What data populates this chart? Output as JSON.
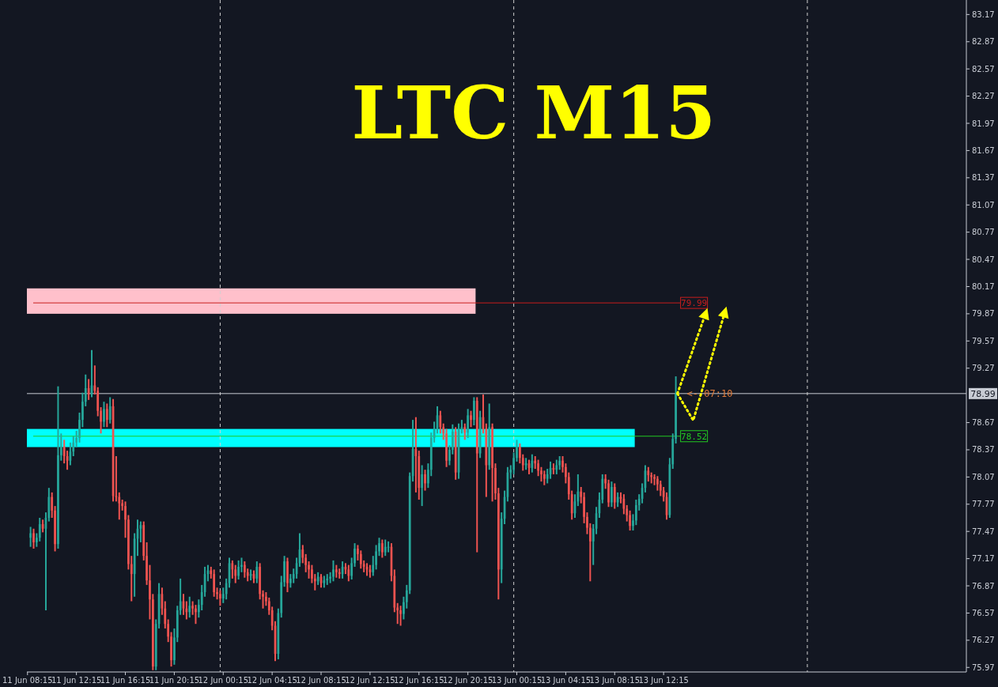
{
  "chart_data": {
    "type": "candlestick",
    "title": "LTC M15",
    "colors": [
      "#26a69a",
      "#ef5350",
      "#26a69a",
      "#26a69a",
      "#ef5350",
      "#26a69a",
      "#26a69a",
      "#ef5350",
      "#ef5350",
      "#26a69a",
      "#26a69a",
      "#ef5350",
      "#ef5350",
      "#26a69a",
      "#26a69a",
      "#26a69a",
      "#26a69a",
      "#26a69a",
      "#26a69a",
      "#ef5350",
      "#26a69a",
      "#ef5350",
      "#ef5350",
      "#ef5350",
      "#26a69a",
      "#ef5350",
      "#26a69a",
      "#ef5350",
      "#ef5350",
      "#ef5350",
      "#ef5350",
      "#ef5350",
      "#ef5350",
      "#ef5350",
      "#26a69a",
      "#26a69a",
      "#26a69a",
      "#ef5350",
      "#ef5350",
      "#ef5350",
      "#ef5350",
      "#26a69a",
      "#26a69a",
      "#ef5350",
      "#ef5350",
      "#ef5350",
      "#ef5350",
      "#26a69a",
      "#26a69a",
      "#26a69a",
      "#ef5350",
      "#ef5350",
      "#26a69a",
      "#ef5350",
      "#ef5350",
      "#26a69a",
      "#26a69a",
      "#26a69a",
      "#26a69a",
      "#ef5350",
      "#ef5350",
      "#ef5350",
      "#ef5350",
      "#26a69a",
      "#26a69a",
      "#26a69a",
      "#ef5350",
      "#ef5350",
      "#26a69a",
      "#26a69a",
      "#ef5350",
      "#ef5350",
      "#26a69a",
      "#ef5350",
      "#26a69a",
      "#ef5350",
      "#ef5350",
      "#ef5350",
      "#ef5350",
      "#ef5350",
      "#ef5350",
      "#26a69a",
      "#26a69a",
      "#26a69a",
      "#ef5350",
      "#26a69a",
      "#26a69a",
      "#26a69a",
      "#26a69a",
      "#ef5350",
      "#ef5350",
      "#ef5350",
      "#ef5350",
      "#ef5350",
      "#26a69a",
      "#ef5350",
      "#26a69a",
      "#26a69a",
      "#26a69a",
      "#26a69a",
      "#ef5350",
      "#ef5350",
      "#26a69a",
      "#ef5350",
      "#ef5350",
      "#26a69a",
      "#26a69a",
      "#ef5350",
      "#ef5350",
      "#ef5350",
      "#ef5350",
      "#ef5350",
      "#26a69a",
      "#26a69a",
      "#26a69a",
      "#ef5350",
      "#26a69a",
      "#26a69a",
      "#ef5350",
      "#ef5350",
      "#ef5350",
      "#ef5350",
      "#26a69a",
      "#26a69a",
      "#26a69a",
      "#26a69a",
      "#ef5350",
      "#ef5350",
      "#26a69a",
      "#ef5350",
      "#26a69a",
      "#26a69a",
      "#26a69a",
      "#26a69a",
      "#ef5350",
      "#ef5350",
      "#ef5350",
      "#26a69a",
      "#26a69a",
      "#ef5350",
      "#26a69a",
      "#26a69a",
      "#ef5350",
      "#26a69a",
      "#ef5350",
      "#26a69a",
      "#ef5350",
      "#26a69a",
      "#ef5350",
      "#ef5350",
      "#26a69a",
      "#ef5350",
      "#ef5350",
      "#ef5350",
      "#26a69a",
      "#26a69a",
      "#26a69a",
      "#26a69a",
      "#26a69a",
      "#26a69a",
      "#ef5350",
      "#ef5350",
      "#26a69a",
      "#ef5350",
      "#26a69a",
      "#ef5350",
      "#ef5350",
      "#ef5350",
      "#ef5350",
      "#26a69a",
      "#26a69a",
      "#ef5350",
      "#26a69a",
      "#26a69a",
      "#ef5350",
      "#ef5350",
      "#ef5350",
      "#ef5350",
      "#26a69a",
      "#26a69a",
      "#ef5350",
      "#ef5350",
      "#ef5350",
      "#ef5350",
      "#26a69a",
      "#26a69a",
      "#26a69a",
      "#26a69a",
      "#ef5350",
      "#ef5350",
      "#26a69a",
      "#ef5350",
      "#26a69a",
      "#ef5350",
      "#ef5350",
      "#ef5350",
      "#ef5350",
      "#26a69a",
      "#26a69a",
      "#26a69a",
      "#26a69a",
      "#26a69a",
      "#ef5350",
      "#ef5350",
      "#ef5350",
      "#ef5350",
      "#ef5350",
      "#ef5350",
      "#ef5350",
      "#26a69a",
      "#26a69a",
      "#26a69a"
    ],
    "x": [
      "--06-11T08:30",
      "--06-11T08:45",
      "--06-11T09:00",
      "--06-11T09:15",
      "--06-11T09:30",
      "--06-11T09:45",
      "--06-11T10:00",
      "--06-11T10:15",
      "--06-11T10:30",
      "--06-11T10:45",
      "--06-11T11:00",
      "--06-11T11:15",
      "--06-11T11:30",
      "--06-11T11:45",
      "--06-11T12:00",
      "--06-11T12:15",
      "--06-11T12:30",
      "--06-11T12:45",
      "--06-11T13:00",
      "--06-11T13:15",
      "--06-11T13:30",
      "--06-11T13:45",
      "--06-11T14:00",
      "--06-11T14:15",
      "--06-11T14:30",
      "--06-11T14:45",
      "--06-11T15:00",
      "--06-11T15:15",
      "--06-11T15:30",
      "--06-11T15:45",
      "--06-11T16:00",
      "--06-11T16:15",
      "--06-11T16:30",
      "--06-11T16:45",
      "--06-11T17:00",
      "--06-11T17:15",
      "--06-11T17:30",
      "--06-11T17:45",
      "--06-11T18:00",
      "--06-11T18:15",
      "--06-11T18:30",
      "--06-11T18:45",
      "--06-11T19:00",
      "--06-11T19:15",
      "--06-11T19:30",
      "--06-11T19:45",
      "--06-11T20:00",
      "--06-11T20:15",
      "--06-11T20:30",
      "--06-11T20:45",
      "--06-11T21:00",
      "--06-11T21:15",
      "--06-11T21:30",
      "--06-11T21:45",
      "--06-11T22:00",
      "--06-11T22:15",
      "--06-11T22:30",
      "--06-11T22:45",
      "--06-11T23:00",
      "--06-11T23:15",
      "--06-11T23:30",
      "--06-11T23:45",
      "--06-12T00:00",
      "--06-12T00:15",
      "--06-12T00:30",
      "--06-12T00:45",
      "--06-12T01:00",
      "--06-12T01:15",
      "--06-12T01:30",
      "--06-12T01:45",
      "--06-12T02:00",
      "--06-12T02:15",
      "--06-12T02:30",
      "--06-12T02:45",
      "--06-12T03:00",
      "--06-12T03:15",
      "--06-12T03:30",
      "--06-12T03:45",
      "--06-12T04:00",
      "--06-12T04:15",
      "--06-12T04:30",
      "--06-12T04:45",
      "--06-12T05:00",
      "--06-12T05:15",
      "--06-12T05:30",
      "--06-12T05:45",
      "--06-12T06:00",
      "--06-12T06:15",
      "--06-12T06:30",
      "--06-12T06:45",
      "--06-12T07:00",
      "--06-12T07:15",
      "--06-12T07:30",
      "--06-12T07:45",
      "--06-12T08:00",
      "--06-12T08:15",
      "--06-12T08:30",
      "--06-12T08:45",
      "--06-12T09:00",
      "--06-12T09:15",
      "--06-12T09:30",
      "--06-12T09:45",
      "--06-12T10:00",
      "--06-12T10:15",
      "--06-12T10:30",
      "--06-12T10:45",
      "--06-12T11:00",
      "--06-12T11:15",
      "--06-12T11:30",
      "--06-12T11:45",
      "--06-12T12:00",
      "--06-12T12:15",
      "--06-12T12:30",
      "--06-12T12:45",
      "--06-12T13:00",
      "--06-12T13:15",
      "--06-12T13:30",
      "--06-12T13:45",
      "--06-12T14:00",
      "--06-12T14:15",
      "--06-12T14:30",
      "--06-12T14:45",
      "--06-12T15:00",
      "--06-12T15:15",
      "--06-12T15:30",
      "--06-12T15:45",
      "--06-12T16:00",
      "--06-12T16:15",
      "--06-12T16:30",
      "--06-12T16:45",
      "--06-12T17:00",
      "--06-12T17:15",
      "--06-12T17:30",
      "--06-12T17:45",
      "--06-12T18:00",
      "--06-12T18:15",
      "--06-12T18:30",
      "--06-12T18:45",
      "--06-12T19:00",
      "--06-12T19:15",
      "--06-12T19:30",
      "--06-12T19:45",
      "--06-12T20:00",
      "--06-12T20:15",
      "--06-12T20:30",
      "--06-12T20:45",
      "--06-12T21:00",
      "--06-12T21:15",
      "--06-12T21:30",
      "--06-12T21:45",
      "--06-12T22:00",
      "--06-12T22:15",
      "--06-12T22:30",
      "--06-12T22:45",
      "--06-12T23:00",
      "--06-12T23:15",
      "--06-12T23:30",
      "--06-12T23:45",
      "--06-13T00:00",
      "--06-13T00:15",
      "--06-13T00:30",
      "--06-13T00:45",
      "--06-13T01:00",
      "--06-13T01:15",
      "--06-13T01:30",
      "--06-13T01:45",
      "--06-13T02:00",
      "--06-13T02:15",
      "--06-13T02:30",
      "--06-13T02:45",
      "--06-13T03:00",
      "--06-13T03:15",
      "--06-13T03:30",
      "--06-13T03:45",
      "--06-13T04:00",
      "--06-13T04:15",
      "--06-13T04:30",
      "--06-13T04:45",
      "--06-13T05:00",
      "--06-13T05:15",
      "--06-13T05:30",
      "--06-13T05:45",
      "--06-13T06:00",
      "--06-13T06:15",
      "--06-13T06:30",
      "--06-13T06:45",
      "--06-13T07:00",
      "--06-13T07:15",
      "--06-13T07:30",
      "--06-13T07:45",
      "--06-13T08:00",
      "--06-13T08:15",
      "--06-13T08:30",
      "--06-13T08:45",
      "--06-13T09:00",
      "--06-13T09:15",
      "--06-13T09:30",
      "--06-13T09:45",
      "--06-13T10:00",
      "--06-13T10:15",
      "--06-13T10:30",
      "--06-13T10:45",
      "--06-13T11:00",
      "--06-13T11:15",
      "--06-13T11:30",
      "--06-13T11:45",
      "--06-13T12:00",
      "--06-13T12:15",
      "--06-13T12:30",
      "--06-13T12:45",
      "--06-13T13:00",
      "--06-13T13:15"
    ],
    "ohlc": [
      [
        77.4,
        77.52,
        77.3,
        77.45
      ],
      [
        77.45,
        77.5,
        77.28,
        77.35
      ],
      [
        77.35,
        77.45,
        77.3,
        77.4
      ],
      [
        77.4,
        77.62,
        77.36,
        77.55
      ],
      [
        77.55,
        77.6,
        77.46,
        77.5
      ],
      [
        77.5,
        77.68,
        76.6,
        77.62
      ],
      [
        77.62,
        77.95,
        77.58,
        77.85
      ],
      [
        77.85,
        77.9,
        77.62,
        77.7
      ],
      [
        77.7,
        77.75,
        77.25,
        77.33
      ],
      [
        77.33,
        79.07,
        77.28,
        78.31
      ],
      [
        78.31,
        78.55,
        78.25,
        78.4
      ],
      [
        78.4,
        78.48,
        78.22,
        78.3
      ],
      [
        78.3,
        78.36,
        78.15,
        78.25
      ],
      [
        78.25,
        78.45,
        78.2,
        78.35
      ],
      [
        78.35,
        78.52,
        78.3,
        78.45
      ],
      [
        78.45,
        78.58,
        78.4,
        78.5
      ],
      [
        78.5,
        78.78,
        78.45,
        78.7
      ],
      [
        78.7,
        79.0,
        78.62,
        78.9
      ],
      [
        78.9,
        79.2,
        78.85,
        79.05
      ],
      [
        79.05,
        79.15,
        78.92,
        78.98
      ],
      [
        78.98,
        79.47,
        78.95,
        79.08
      ],
      [
        79.08,
        79.3,
        78.98,
        79.02
      ],
      [
        79.02,
        79.06,
        78.74,
        78.8
      ],
      [
        78.8,
        78.84,
        78.55,
        78.68
      ],
      [
        78.68,
        78.9,
        78.62,
        78.82
      ],
      [
        78.82,
        78.88,
        78.62,
        78.7
      ],
      [
        78.7,
        78.95,
        78.66,
        78.85
      ],
      [
        78.85,
        78.93,
        77.8,
        77.86
      ],
      [
        77.86,
        78.3,
        77.8,
        77.85
      ],
      [
        77.85,
        77.9,
        77.6,
        77.78
      ],
      [
        77.78,
        77.82,
        77.7,
        77.75
      ],
      [
        77.75,
        77.8,
        77.4,
        77.6
      ],
      [
        77.6,
        77.65,
        77.05,
        77.11
      ],
      [
        77.11,
        77.2,
        76.7,
        77.0
      ],
      [
        77.0,
        77.45,
        76.75,
        77.39
      ],
      [
        77.39,
        77.6,
        77.2,
        77.5
      ],
      [
        77.5,
        77.58,
        77.35,
        77.54
      ],
      [
        77.54,
        77.58,
        77.15,
        77.2
      ],
      [
        77.2,
        77.35,
        76.88,
        76.93
      ],
      [
        76.93,
        77.1,
        76.5,
        76.72
      ],
      [
        76.72,
        76.78,
        75.94,
        75.98
      ],
      [
        75.98,
        76.5,
        75.94,
        76.45
      ],
      [
        76.45,
        76.9,
        76.4,
        76.78
      ],
      [
        76.78,
        76.85,
        76.55,
        76.62
      ],
      [
        76.62,
        76.7,
        76.4,
        76.45
      ],
      [
        76.45,
        76.5,
        76.25,
        76.31
      ],
      [
        76.31,
        76.36,
        75.98,
        76.05
      ],
      [
        76.05,
        76.4,
        76.0,
        76.3
      ],
      [
        76.3,
        76.65,
        76.25,
        76.6
      ],
      [
        76.6,
        76.95,
        76.55,
        76.7
      ],
      [
        76.7,
        76.78,
        76.55,
        76.62
      ],
      [
        76.62,
        76.7,
        76.5,
        76.58
      ],
      [
        76.58,
        76.75,
        76.52,
        76.65
      ],
      [
        76.65,
        76.7,
        76.55,
        76.62
      ],
      [
        76.62,
        76.66,
        76.45,
        76.58
      ],
      [
        76.58,
        76.72,
        76.52,
        76.66
      ],
      [
        76.66,
        76.88,
        76.6,
        76.8
      ],
      [
        76.8,
        77.08,
        76.75,
        77.0
      ],
      [
        77.0,
        77.1,
        76.92,
        77.04
      ],
      [
        77.04,
        77.08,
        76.95,
        77.0
      ],
      [
        77.0,
        77.05,
        76.75,
        76.8
      ],
      [
        76.8,
        76.85,
        76.72,
        76.78
      ],
      [
        76.78,
        76.82,
        76.65,
        76.73
      ],
      [
        76.73,
        76.85,
        76.68,
        76.78
      ],
      [
        76.78,
        76.95,
        76.72,
        76.9
      ],
      [
        76.9,
        77.18,
        76.85,
        77.12
      ],
      [
        77.12,
        77.15,
        76.95,
        77.05
      ],
      [
        77.05,
        77.1,
        76.9,
        76.98
      ],
      [
        76.98,
        77.15,
        76.94,
        77.08
      ],
      [
        77.08,
        77.18,
        77.02,
        77.1
      ],
      [
        77.1,
        77.14,
        76.96,
        77.02
      ],
      [
        77.02,
        77.06,
        76.92,
        76.98
      ],
      [
        76.98,
        77.05,
        76.93,
        77.0
      ],
      [
        77.0,
        77.04,
        76.9,
        76.95
      ],
      [
        76.95,
        77.14,
        76.9,
        77.08
      ],
      [
        77.08,
        77.12,
        76.72,
        76.78
      ],
      [
        76.78,
        76.82,
        76.62,
        76.75
      ],
      [
        76.75,
        76.8,
        76.65,
        76.7
      ],
      [
        76.7,
        76.74,
        76.55,
        76.6
      ],
      [
        76.6,
        76.64,
        76.38,
        76.43
      ],
      [
        76.43,
        76.48,
        76.04,
        76.12
      ],
      [
        76.12,
        76.62,
        76.06,
        76.57
      ],
      [
        76.57,
        76.98,
        76.52,
        76.91
      ],
      [
        76.91,
        77.2,
        76.86,
        77.14
      ],
      [
        77.14,
        77.18,
        76.8,
        76.9
      ],
      [
        76.9,
        77.0,
        76.85,
        76.95
      ],
      [
        76.95,
        77.06,
        76.9,
        77.0
      ],
      [
        77.0,
        77.18,
        76.95,
        77.12
      ],
      [
        77.12,
        77.45,
        77.08,
        77.27
      ],
      [
        77.27,
        77.32,
        77.12,
        77.18
      ],
      [
        77.18,
        77.22,
        77.02,
        77.1
      ],
      [
        77.1,
        77.14,
        76.95,
        77.05
      ],
      [
        77.05,
        77.1,
        76.9,
        76.95
      ],
      [
        76.95,
        77.0,
        76.82,
        76.92
      ],
      [
        76.92,
        77.02,
        76.88,
        76.97
      ],
      [
        76.97,
        77.0,
        76.85,
        76.9
      ],
      [
        76.9,
        76.98,
        76.85,
        76.93
      ],
      [
        76.93,
        77.0,
        76.88,
        76.95
      ],
      [
        76.95,
        77.02,
        76.9,
        76.97
      ],
      [
        76.97,
        77.15,
        76.92,
        77.05
      ],
      [
        77.05,
        77.1,
        76.96,
        77.02
      ],
      [
        77.02,
        77.06,
        76.95,
        77.0
      ],
      [
        77.0,
        77.14,
        76.95,
        77.08
      ],
      [
        77.08,
        77.12,
        77.0,
        77.05
      ],
      [
        77.05,
        77.1,
        76.92,
        76.98
      ],
      [
        76.98,
        77.18,
        76.94,
        77.12
      ],
      [
        77.12,
        77.34,
        77.08,
        77.28
      ],
      [
        77.28,
        77.32,
        77.15,
        77.22
      ],
      [
        77.22,
        77.26,
        77.06,
        77.11
      ],
      [
        77.11,
        77.15,
        77.02,
        77.08
      ],
      [
        77.08,
        77.12,
        76.98,
        77.05
      ],
      [
        77.05,
        77.1,
        76.96,
        77.02
      ],
      [
        77.02,
        77.2,
        76.98,
        77.1
      ],
      [
        77.1,
        77.32,
        77.05,
        77.25
      ],
      [
        77.25,
        77.4,
        77.2,
        77.34
      ],
      [
        77.34,
        77.38,
        77.18,
        77.24
      ],
      [
        77.24,
        77.38,
        77.2,
        77.3
      ],
      [
        77.3,
        77.36,
        77.24,
        77.3
      ],
      [
        77.3,
        77.34,
        76.92,
        76.98
      ],
      [
        76.98,
        77.05,
        76.58,
        76.63
      ],
      [
        76.63,
        76.68,
        76.45,
        76.6
      ],
      [
        76.6,
        76.65,
        76.43,
        76.56
      ],
      [
        76.56,
        76.75,
        76.5,
        76.69
      ],
      [
        76.69,
        76.88,
        76.62,
        76.82
      ],
      [
        76.82,
        78.12,
        76.78,
        78.08
      ],
      [
        78.08,
        78.7,
        78.02,
        78.38
      ],
      [
        78.38,
        78.73,
        77.9,
        78.3
      ],
      [
        78.3,
        78.36,
        77.82,
        77.95
      ],
      [
        77.95,
        78.2,
        77.75,
        78.1
      ],
      [
        78.1,
        78.15,
        77.92,
        78.0
      ],
      [
        78.0,
        78.22,
        77.95,
        78.15
      ],
      [
        78.15,
        78.56,
        78.08,
        78.5
      ],
      [
        78.5,
        78.68,
        78.45,
        78.6
      ],
      [
        78.6,
        78.85,
        78.55,
        78.75
      ],
      [
        78.75,
        78.8,
        78.55,
        78.62
      ],
      [
        78.62,
        78.66,
        78.48,
        78.55
      ],
      [
        78.55,
        78.6,
        78.18,
        78.25
      ],
      [
        78.25,
        78.42,
        78.2,
        78.37
      ],
      [
        78.37,
        78.65,
        78.32,
        78.57
      ],
      [
        78.57,
        78.62,
        78.04,
        78.12
      ],
      [
        78.12,
        78.66,
        78.05,
        78.6
      ],
      [
        78.6,
        78.7,
        78.55,
        78.62
      ],
      [
        78.62,
        78.66,
        78.48,
        78.56
      ],
      [
        78.56,
        78.82,
        78.5,
        78.75
      ],
      [
        78.75,
        78.8,
        78.62,
        78.7
      ],
      [
        78.7,
        78.95,
        78.64,
        78.91
      ],
      [
        78.91,
        78.95,
        77.24,
        78.33
      ],
      [
        78.33,
        78.8,
        78.28,
        78.73
      ],
      [
        78.73,
        78.98,
        78.55,
        78.6
      ],
      [
        78.6,
        78.66,
        77.85,
        78.2
      ],
      [
        78.2,
        78.88,
        78.15,
        78.62
      ],
      [
        78.62,
        78.66,
        77.8,
        78.17
      ],
      [
        78.17,
        78.22,
        77.82,
        77.89
      ],
      [
        77.89,
        77.95,
        76.72,
        77.05
      ],
      [
        77.05,
        77.68,
        76.9,
        77.61
      ],
      [
        77.61,
        77.92,
        77.55,
        77.85
      ],
      [
        77.85,
        78.18,
        77.8,
        78.12
      ],
      [
        78.12,
        78.2,
        78.05,
        78.15
      ],
      [
        78.15,
        78.34,
        78.1,
        78.28
      ],
      [
        78.28,
        78.48,
        78.24,
        78.4
      ],
      [
        78.4,
        78.44,
        78.22,
        78.28
      ],
      [
        78.28,
        78.32,
        78.14,
        78.2
      ],
      [
        78.2,
        78.28,
        78.15,
        78.22
      ],
      [
        78.22,
        78.26,
        78.1,
        78.17
      ],
      [
        78.17,
        78.32,
        78.12,
        78.25
      ],
      [
        78.25,
        78.3,
        78.16,
        78.22
      ],
      [
        78.22,
        78.26,
        78.08,
        78.14
      ],
      [
        78.14,
        78.18,
        78.02,
        78.1
      ],
      [
        78.1,
        78.14,
        77.98,
        78.05
      ],
      [
        78.05,
        78.16,
        78.0,
        78.1
      ],
      [
        78.1,
        78.24,
        78.05,
        78.17
      ],
      [
        78.17,
        78.22,
        78.1,
        78.15
      ],
      [
        78.15,
        78.26,
        78.1,
        78.2
      ],
      [
        78.2,
        78.3,
        78.15,
        78.25
      ],
      [
        78.25,
        78.3,
        78.12,
        78.18
      ],
      [
        78.18,
        78.22,
        78.0,
        78.07
      ],
      [
        78.07,
        78.12,
        77.82,
        77.88
      ],
      [
        77.88,
        77.92,
        77.6,
        77.67
      ],
      [
        77.67,
        77.88,
        77.62,
        77.8
      ],
      [
        77.8,
        78.1,
        77.75,
        77.91
      ],
      [
        77.91,
        77.96,
        77.78,
        77.85
      ],
      [
        77.85,
        77.9,
        77.56,
        77.63
      ],
      [
        77.63,
        77.68,
        77.44,
        77.51
      ],
      [
        77.51,
        77.56,
        76.92,
        77.36
      ],
      [
        77.36,
        77.55,
        77.1,
        77.5
      ],
      [
        77.5,
        77.74,
        77.44,
        77.67
      ],
      [
        77.67,
        77.9,
        77.62,
        77.82
      ],
      [
        77.82,
        78.1,
        77.78,
        78.05
      ],
      [
        78.05,
        78.1,
        77.94,
        78.0
      ],
      [
        78.0,
        78.04,
        77.74,
        77.79
      ],
      [
        77.79,
        78.02,
        77.74,
        77.96
      ],
      [
        77.96,
        78.0,
        77.72,
        77.79
      ],
      [
        77.79,
        77.9,
        77.74,
        77.85
      ],
      [
        77.85,
        77.9,
        77.78,
        77.83
      ],
      [
        77.83,
        77.88,
        77.66,
        77.72
      ],
      [
        77.72,
        77.76,
        77.58,
        77.65
      ],
      [
        77.65,
        77.7,
        77.48,
        77.53
      ],
      [
        77.53,
        77.66,
        77.48,
        77.59
      ],
      [
        77.59,
        77.82,
        77.54,
        77.76
      ],
      [
        77.76,
        77.88,
        77.7,
        77.83
      ],
      [
        77.83,
        78.0,
        77.78,
        77.95
      ],
      [
        77.95,
        78.2,
        77.9,
        78.14
      ],
      [
        78.14,
        78.18,
        78.02,
        78.09
      ],
      [
        78.09,
        78.12,
        78.0,
        78.07
      ],
      [
        78.07,
        78.1,
        77.98,
        78.05
      ],
      [
        78.05,
        78.08,
        77.92,
        77.99
      ],
      [
        77.99,
        78.03,
        77.86,
        77.92
      ],
      [
        77.92,
        77.96,
        77.8,
        77.85
      ],
      [
        77.85,
        77.9,
        77.6,
        77.65
      ],
      [
        77.65,
        78.28,
        77.62,
        78.21
      ],
      [
        78.21,
        78.55,
        78.16,
        78.49
      ],
      [
        78.49,
        79.18,
        78.44,
        78.99
      ]
    ],
    "xlim": [
      "--06-11T08:12",
      "--06-14T13:00"
    ],
    "xticks": [
      {
        "value": "--06-11T08:15",
        "label": "11 Jun 08:15"
      },
      {
        "value": "--06-11T12:15",
        "label": "11 Jun 12:15"
      },
      {
        "value": "--06-11T16:15",
        "label": "11 Jun 16:15"
      },
      {
        "value": "--06-11T20:15",
        "label": "11 Jun 20:15"
      },
      {
        "value": "--06-12T00:15",
        "label": "12 Jun 00:15"
      },
      {
        "value": "--06-12T04:15",
        "label": "12 Jun 04:15"
      },
      {
        "value": "--06-12T08:15",
        "label": "12 Jun 08:15"
      },
      {
        "value": "--06-12T12:15",
        "label": "12 Jun 12:15"
      },
      {
        "value": "--06-12T16:15",
        "label": "12 Jun 16:15"
      },
      {
        "value": "--06-12T20:15",
        "label": "12 Jun 20:15"
      },
      {
        "value": "--06-13T00:15",
        "label": "13 Jun 00:15"
      },
      {
        "value": "--06-13T04:15",
        "label": "13 Jun 04:15"
      },
      {
        "value": "--06-13T08:15",
        "label": "13 Jun 08:15"
      },
      {
        "value": "--06-13T12:15",
        "label": "13 Jun 12:15"
      }
    ],
    "ylim": [
      75.92,
      83.33
    ],
    "yticks": [
      75.97,
      76.27,
      76.57,
      76.87,
      77.17,
      77.47,
      77.77,
      78.07,
      78.37,
      78.67,
      79.27,
      79.57,
      79.87,
      80.17,
      80.47,
      80.77,
      81.07,
      81.37,
      81.67,
      81.97,
      82.27,
      82.57,
      82.87,
      83.17
    ],
    "bands": [
      {
        "axis": "y",
        "from": 79.87,
        "to": 80.15,
        "color": "#ffc0cb"
      },
      {
        "axis": "y",
        "from": 78.4,
        "to": 78.6,
        "color": "#00ffff"
      }
    ],
    "ref_lines": [
      {
        "axis": "y",
        "value": 79.99,
        "label": "79.99",
        "color": "#c81e1e"
      },
      {
        "axis": "y",
        "value": 78.52,
        "label": "78.52",
        "color": "#22c822"
      },
      {
        "axis": "y",
        "value": 78.99,
        "label": "78.99",
        "color": "#c8ccd4"
      },
      {
        "axis": "x",
        "value": "--06-12T00:00",
        "color": "#d0d0d0",
        "line_style": "dashed"
      },
      {
        "axis": "x",
        "value": "--06-13T00:00",
        "color": "#d0d0d0",
        "line_style": "dashed"
      },
      {
        "axis": "x",
        "value": "--06-14T00:00",
        "color": "#d0d0d0",
        "line_style": "dashed"
      }
    ],
    "annotations": [
      {
        "text": "<- 07:10",
        "x": "--06-13T13:15",
        "y": 78.99
      }
    ]
  }
}
